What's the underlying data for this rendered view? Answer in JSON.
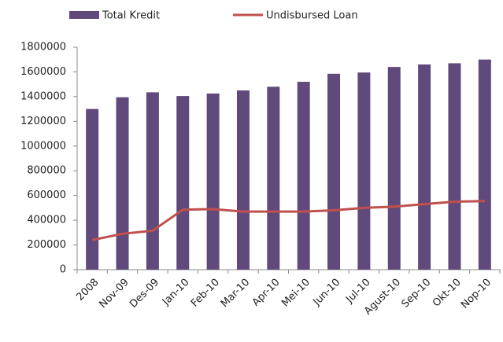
{
  "chart_data": {
    "type": "bar",
    "categories": [
      "2008",
      "Nov-09",
      "Des-09",
      "Jan-10",
      "Feb-10",
      "Mar-10",
      "Apr-10",
      "Mei-10",
      "Jun-10",
      "Jul-10",
      "Agust-10",
      "Sep-10",
      "Okt-10",
      "Nop-10"
    ],
    "series": [
      {
        "name": "Total Kredit",
        "type": "bar",
        "color": "#604a7b",
        "values": [
          1300000,
          1395000,
          1435000,
          1405000,
          1425000,
          1450000,
          1480000,
          1520000,
          1585000,
          1595000,
          1640000,
          1660000,
          1670000,
          1700000
        ]
      },
      {
        "name": "Undisbursed Loan",
        "type": "line",
        "color": "#c0504d",
        "values": [
          240000,
          290000,
          315000,
          485000,
          490000,
          470000,
          470000,
          470000,
          480000,
          500000,
          510000,
          530000,
          550000,
          555000
        ]
      }
    ],
    "ylim": [
      0,
      1800000
    ],
    "yticks": [
      0,
      200000,
      400000,
      600000,
      800000,
      1000000,
      1200000,
      1400000,
      1600000,
      1800000
    ],
    "grid": false
  }
}
